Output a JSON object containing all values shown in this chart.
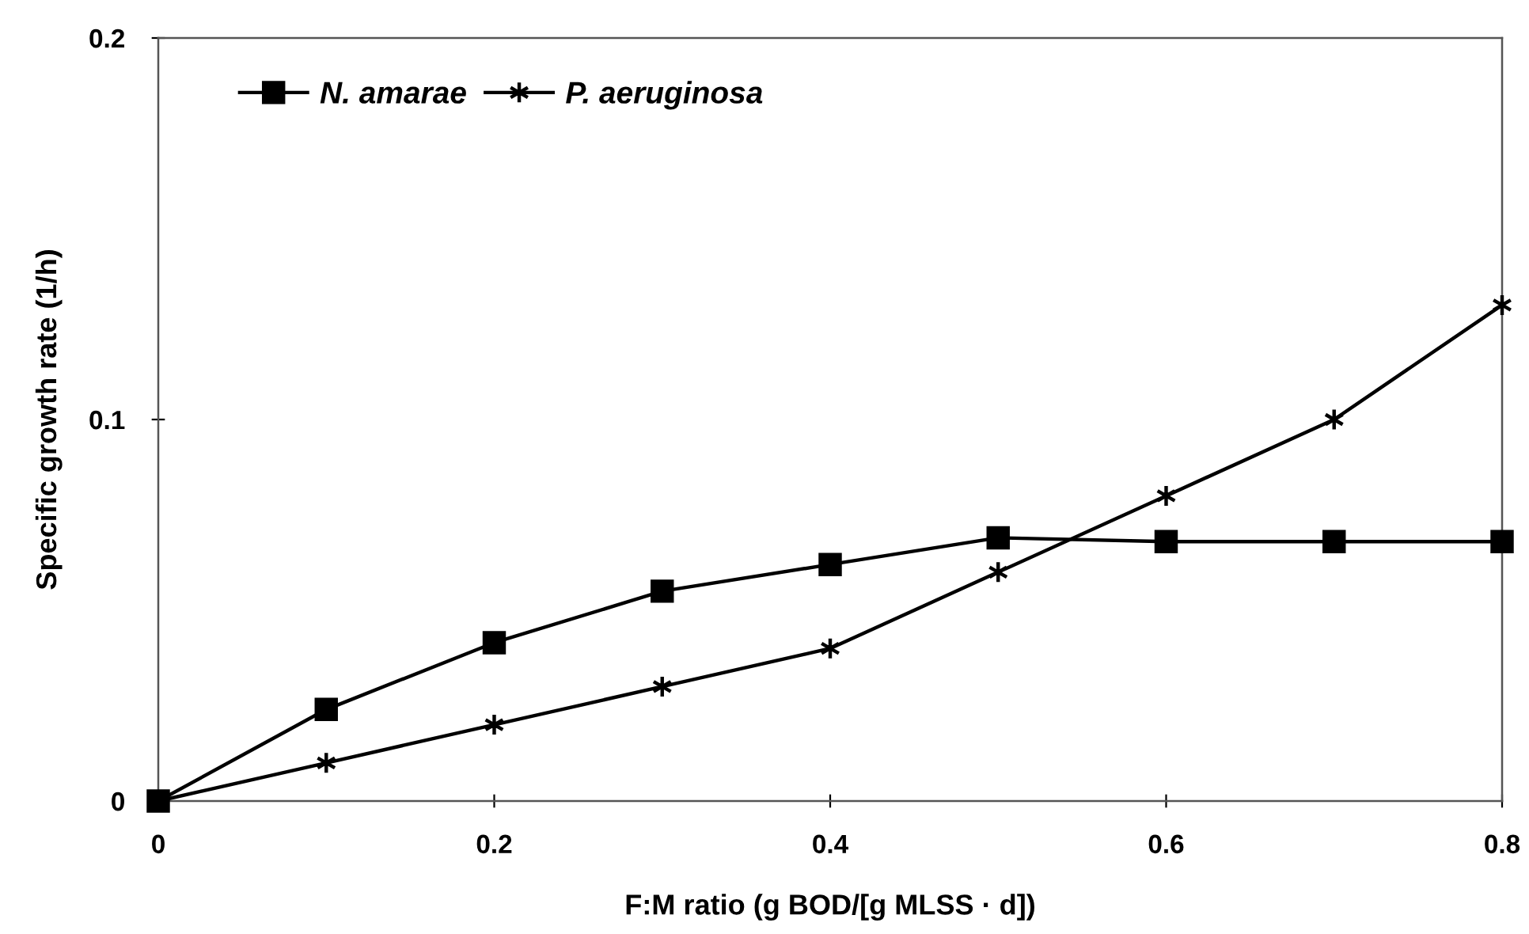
{
  "chart_data": {
    "type": "line",
    "xlabel": "F:M ratio (g BOD/[g MLSS · d])",
    "ylabel": "Specific growth rate (1/h)",
    "x": [
      0,
      0.1,
      0.2,
      0.3,
      0.4,
      0.5,
      0.6,
      0.7,
      0.8
    ],
    "series": [
      {
        "name": "N. amarae",
        "color": "#000000",
        "marker": "square",
        "values": [
          0,
          0.024,
          0.0415,
          0.055,
          0.062,
          0.069,
          0.068,
          0.068,
          0.068
        ]
      },
      {
        "name": "P. aeruginosa",
        "color": "#000000",
        "marker": "cross",
        "values": [
          0,
          0.01,
          0.02,
          0.03,
          0.04,
          0.06,
          0.08,
          0.1,
          0.13
        ]
      }
    ],
    "xlim": [
      0,
      0.8
    ],
    "xticks": [
      0,
      0.2,
      0.4,
      0.6,
      0.8
    ],
    "ylim": [
      0,
      0.2
    ],
    "yticks": [
      0,
      0.1,
      0.2
    ],
    "grid": false,
    "legend": "top left",
    "line_style": "solid"
  }
}
